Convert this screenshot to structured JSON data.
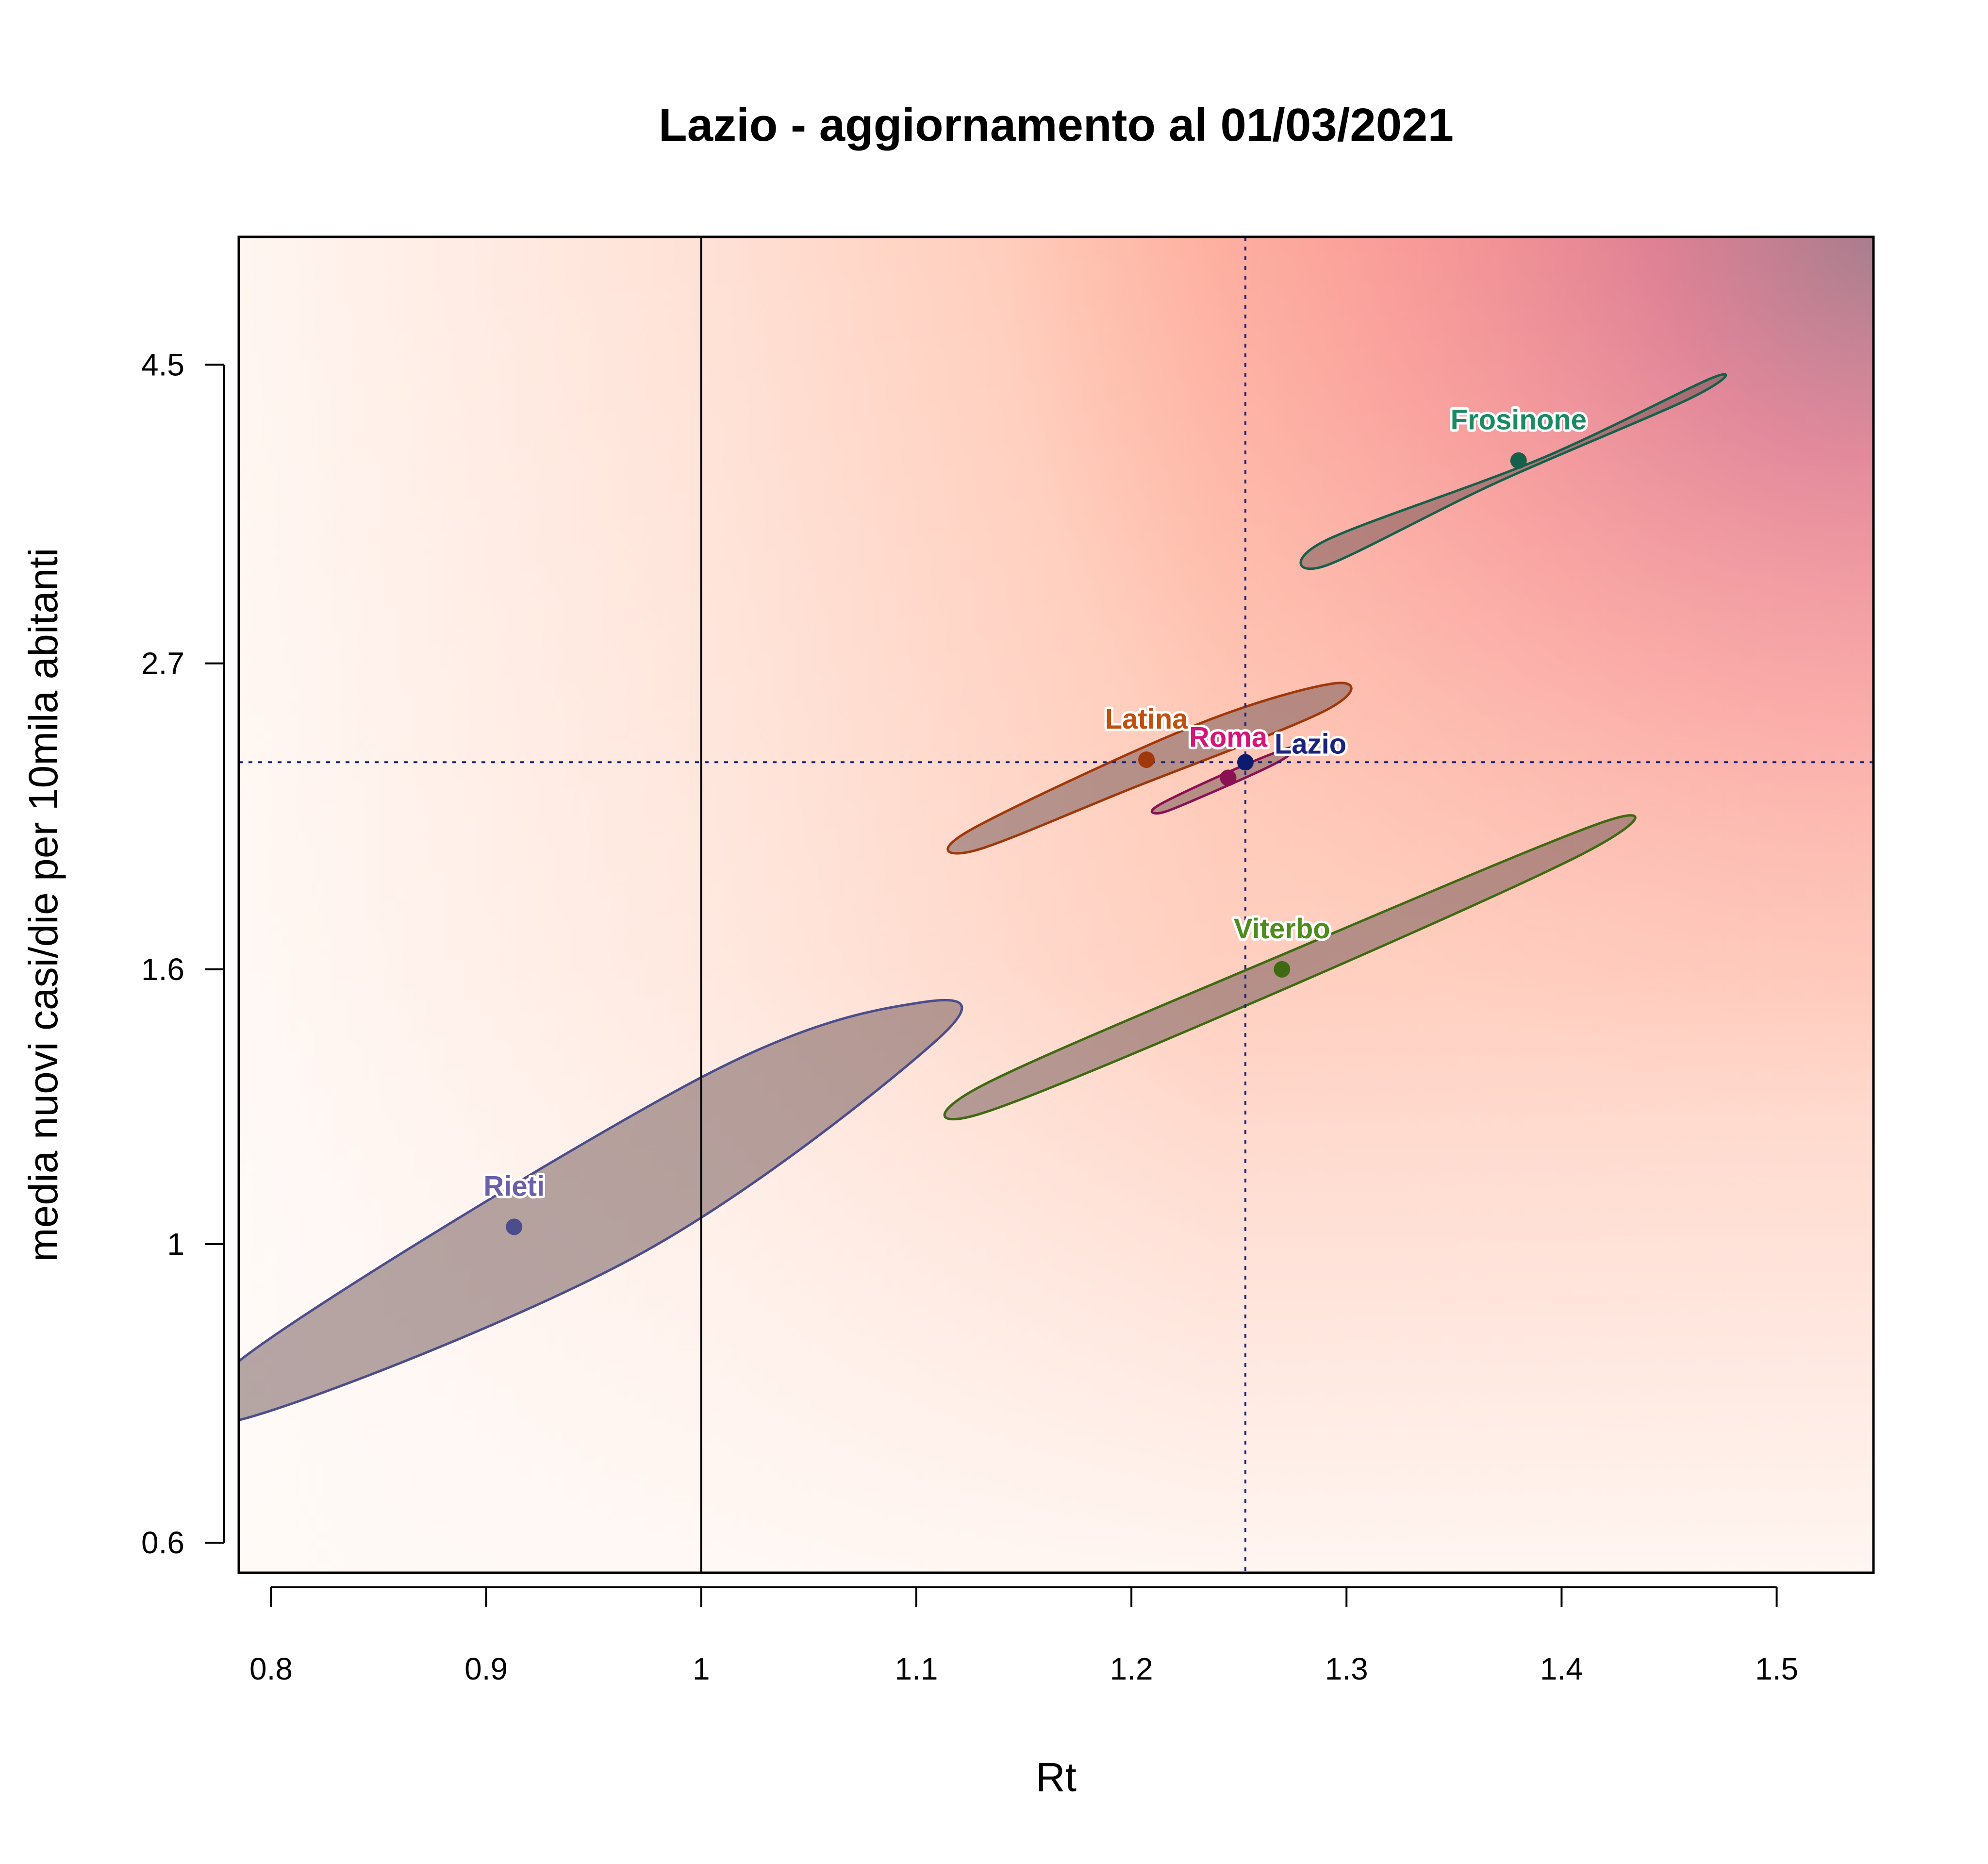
{
  "chart_data": {
    "type": "scatter",
    "title": "Lazio - aggiornamento al 01/03/2021",
    "xlabel": "Rt",
    "ylabel": "media nuovi casi/die per 10mila abitanti",
    "xlim": [
      0.785,
      1.545
    ],
    "ylim": [
      0.57,
      5.6
    ],
    "y_scale": "log",
    "x_ticks": [
      {
        "value": 0.8,
        "label": "0.8"
      },
      {
        "value": 0.9,
        "label": "0.9"
      },
      {
        "value": 1.0,
        "label": "1"
      },
      {
        "value": 1.1,
        "label": "1.1"
      },
      {
        "value": 1.2,
        "label": "1.2"
      },
      {
        "value": 1.3,
        "label": "1.3"
      },
      {
        "value": 1.4,
        "label": "1.4"
      },
      {
        "value": 1.5,
        "label": "1.5"
      }
    ],
    "y_ticks": [
      {
        "value": 0.6,
        "label": "0.6"
      },
      {
        "value": 1.0,
        "label": "1"
      },
      {
        "value": 1.6,
        "label": "1.6"
      },
      {
        "value": 2.7,
        "label": "2.7"
      },
      {
        "value": 4.5,
        "label": "4.5"
      }
    ],
    "reference_lines": {
      "rt_threshold": 1.0,
      "lazio_rt": 1.253,
      "lazio_incidence": 2.28
    },
    "points": [
      {
        "name": "Rieti",
        "rt": 0.913,
        "incidence": 1.03,
        "color": "#4b4d8c",
        "label_color": "#6a5fa8",
        "ellipse": [
          [
            0.79,
            0.83
          ],
          [
            1.0,
            1.33
          ],
          [
            1.1,
            1.51
          ],
          [
            1.11,
            1.42
          ],
          [
            0.97,
            0.98
          ],
          [
            0.785,
            0.74
          ]
        ]
      },
      {
        "name": "Latina",
        "rt": 1.207,
        "incidence": 2.29,
        "color": "#a0380a",
        "label_color": "#c0500f",
        "ellipse": [
          [
            1.125,
            2.03
          ],
          [
            1.23,
            2.43
          ],
          [
            1.295,
            2.61
          ],
          [
            1.29,
            2.49
          ],
          [
            1.2,
            2.18
          ],
          [
            1.127,
            1.96
          ]
        ]
      },
      {
        "name": "Roma",
        "rt": 1.245,
        "incidence": 2.22,
        "color": "#8a1152",
        "label_color": "#d4157a",
        "ellipse": [
          [
            1.213,
            2.12
          ],
          [
            1.25,
            2.26
          ],
          [
            1.275,
            2.34
          ],
          [
            1.268,
            2.28
          ],
          [
            1.23,
            2.14
          ],
          [
            1.213,
            2.09
          ]
        ]
      },
      {
        "name": "Lazio",
        "rt": 1.253,
        "incidence": 2.28,
        "color": "#0d1b6e",
        "label_color": "#1a237e",
        "ellipse": []
      },
      {
        "name": "Viterbo",
        "rt": 1.27,
        "incidence": 1.6,
        "color": "#3f6a12",
        "label_color": "#4e8c1c",
        "ellipse": [
          [
            1.13,
            1.31
          ],
          [
            1.27,
            1.64
          ],
          [
            1.42,
            2.06
          ],
          [
            1.41,
            1.95
          ],
          [
            1.26,
            1.52
          ],
          [
            1.13,
            1.25
          ]
        ]
      },
      {
        "name": "Frosinone",
        "rt": 1.38,
        "incidence": 3.82,
        "color": "#15604a",
        "label_color": "#1a8a62",
        "ellipse": [
          [
            1.29,
            3.33
          ],
          [
            1.39,
            3.83
          ],
          [
            1.47,
            4.4
          ],
          [
            1.46,
            4.25
          ],
          [
            1.37,
            3.68
          ],
          [
            1.29,
            3.19
          ]
        ]
      }
    ]
  }
}
